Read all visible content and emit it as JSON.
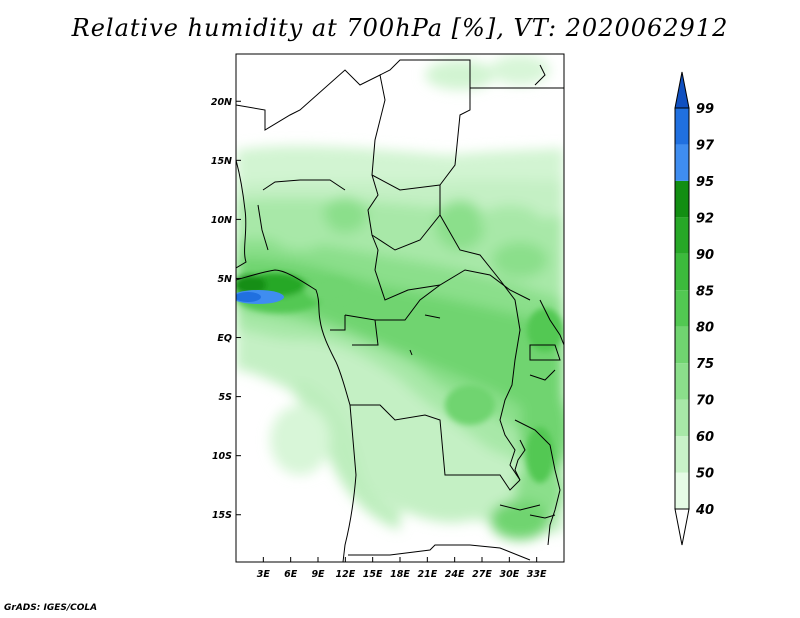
{
  "title": "Relative humidity at 700hPa [%], VT: 2020062912",
  "credit": "GrADS: IGES/COLA",
  "map": {
    "lon_range": [
      0,
      36
    ],
    "lat_range": [
      -19,
      24
    ],
    "lat_ticks": [
      {
        "value": 20,
        "label": "20N"
      },
      {
        "value": 15,
        "label": "15N"
      },
      {
        "value": 10,
        "label": "10N"
      },
      {
        "value": 5,
        "label": "5N"
      },
      {
        "value": 0,
        "label": "EQ"
      },
      {
        "value": -5,
        "label": "5S"
      },
      {
        "value": -10,
        "label": "10S"
      },
      {
        "value": -15,
        "label": "15S"
      }
    ],
    "lon_ticks": [
      {
        "value": 3,
        "label": "3E"
      },
      {
        "value": 6,
        "label": "6E"
      },
      {
        "value": 9,
        "label": "9E"
      },
      {
        "value": 12,
        "label": "12E"
      },
      {
        "value": 15,
        "label": "15E"
      },
      {
        "value": 18,
        "label": "18E"
      },
      {
        "value": 21,
        "label": "21E"
      },
      {
        "value": 24,
        "label": "24E"
      },
      {
        "value": 27,
        "label": "27E"
      },
      {
        "value": 30,
        "label": "30E"
      },
      {
        "value": 33,
        "label": "33E"
      }
    ]
  },
  "colorbar": {
    "levels": [
      {
        "label": "40",
        "color": "#e6fbe6"
      },
      {
        "label": "50",
        "color": "#c8f2c8"
      },
      {
        "label": "60",
        "color": "#a8e8a8"
      },
      {
        "label": "70",
        "color": "#8bdf8b"
      },
      {
        "label": "75",
        "color": "#70d470"
      },
      {
        "label": "80",
        "color": "#52c852"
      },
      {
        "label": "85",
        "color": "#3cbb3c"
      },
      {
        "label": "90",
        "color": "#27a827"
      },
      {
        "label": "92",
        "color": "#128e12"
      },
      {
        "label": "95",
        "color": "#3f8df0"
      },
      {
        "label": "97",
        "color": "#2070e0"
      },
      {
        "label": "99",
        "color": "#1050c0"
      }
    ],
    "below_color": "#ffffff",
    "above_color": "#1050c0"
  }
}
